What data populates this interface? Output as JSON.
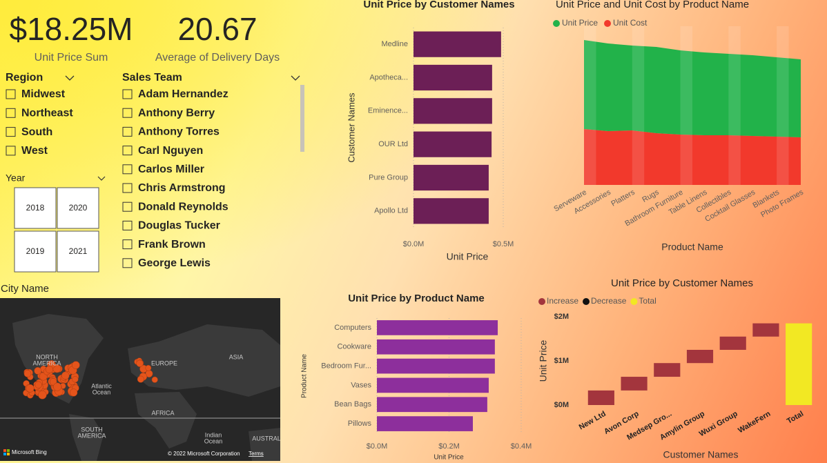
{
  "kpis": [
    {
      "value": "$18.25M",
      "label": "Unit Price Sum"
    },
    {
      "value": "20.67",
      "label": "Average of Delivery Days"
    }
  ],
  "region": {
    "title": "Region",
    "items": [
      "Midwest",
      "Northeast",
      "South",
      "West"
    ]
  },
  "sales_team": {
    "title": "Sales Team",
    "items": [
      "Adam Hernandez",
      "Anthony Berry",
      "Anthony Torres",
      "Carl Nguyen",
      "Carlos Miller",
      "Chris Armstrong",
      "Donald Reynolds",
      "Douglas Tucker",
      "Frank Brown",
      "George Lewis"
    ]
  },
  "year": {
    "title": "Year",
    "items": [
      "2018",
      "2020",
      "2019",
      "2021"
    ]
  },
  "map": {
    "title": "City Name",
    "labels": [
      [
        "NORTH",
        "AMERICA"
      ],
      [
        "EUROPE"
      ],
      [
        "ASIA"
      ],
      [
        "Atlantic",
        "Ocean"
      ],
      [
        "AFRICA"
      ],
      [
        "SOUTH",
        "AMERICA"
      ],
      [
        "Indian",
        "Ocean"
      ],
      [
        "AUSTRAL"
      ]
    ],
    "attribution": [
      "Microsoft Bing",
      "© 2022 Microsoft Corporation",
      "Terms"
    ]
  },
  "chart_data": [
    {
      "type": "hbar",
      "title": "Unit Price by Customer Names",
      "x_label": "Unit Price",
      "y_label": "Customer Names",
      "categories": [
        "Medline",
        "Apotheca...",
        "Eminence...",
        "OUR Ltd",
        "Pure Group",
        "Apollo Ltd"
      ],
      "values": [
        488000,
        438000,
        438000,
        435000,
        419000,
        419000
      ],
      "color": "#6c1f56",
      "xlim": [
        0,
        560000
      ],
      "xticks": [
        {
          "value": 0,
          "label": "$0.0M"
        },
        {
          "value": 500000,
          "label": "$0.5M"
        }
      ],
      "grid": true
    },
    {
      "type": "area",
      "title": "Unit Price and Unit Cost by Product Name",
      "x_label": "Product Name",
      "stacked": true,
      "categories": [
        "Serveware",
        "Accessories",
        "Platters",
        "Rugs",
        "Bathroom Furniture",
        "Table Linens",
        "Collectibles",
        "Cocktail Glasses",
        "Blankets",
        "Photo Frames"
      ],
      "series": [
        {
          "name": "Unit Price",
          "color": "#22b24a",
          "values": [
            129,
            127,
            123,
            125,
            122,
            120,
            118,
            117,
            115,
            113
          ]
        },
        {
          "name": "Unit Cost",
          "color": "#f2392c",
          "values": [
            81,
            78,
            79,
            75,
            73,
            72,
            72,
            71,
            70,
            69
          ]
        }
      ],
      "ylim": [
        0,
        230
      ]
    },
    {
      "type": "hbar",
      "title": "Unit Price by Product Name",
      "x_label": "Unit Price",
      "y_label": "Product Name",
      "categories": [
        "Computers",
        "Cookware",
        "Bedroom Fur...",
        "Vases",
        "Bean Bags",
        "Pillows"
      ],
      "values": [
        335000,
        327000,
        327000,
        310000,
        306000,
        266000
      ],
      "color": "#8d2f9c",
      "xlim": [
        0,
        400000
      ],
      "xticks": [
        {
          "value": 0,
          "label": "$0.0M"
        },
        {
          "value": 200000,
          "label": "$0.2M"
        },
        {
          "value": 400000,
          "label": "$0.4M"
        }
      ],
      "grid": true
    },
    {
      "type": "waterfall",
      "title": "Unit Price by Customer Names",
      "x_label": "Customer Names",
      "y_label": "Unit Price",
      "legend": [
        {
          "name": "Increase",
          "color": "#a3353d"
        },
        {
          "name": "Decrease",
          "color": "#111111"
        },
        {
          "name": "Total",
          "color": "#f2e823"
        }
      ],
      "categories": [
        "New Ltd",
        "Avon Corp",
        "Medsep Gro...",
        "Amylin Group",
        "Wuxi Group",
        "WakeFern",
        "Total"
      ],
      "measure": [
        "relative",
        "relative",
        "relative",
        "relative",
        "relative",
        "relative",
        "total"
      ],
      "values": [
        330000,
        310000,
        310000,
        300000,
        300000,
        300000,
        1850000
      ],
      "ylim": [
        0,
        2100000
      ],
      "yticks": [
        {
          "value": 0,
          "label": "$0M"
        },
        {
          "value": 1000000,
          "label": "$1M"
        },
        {
          "value": 2000000,
          "label": "$2M"
        }
      ]
    }
  ]
}
